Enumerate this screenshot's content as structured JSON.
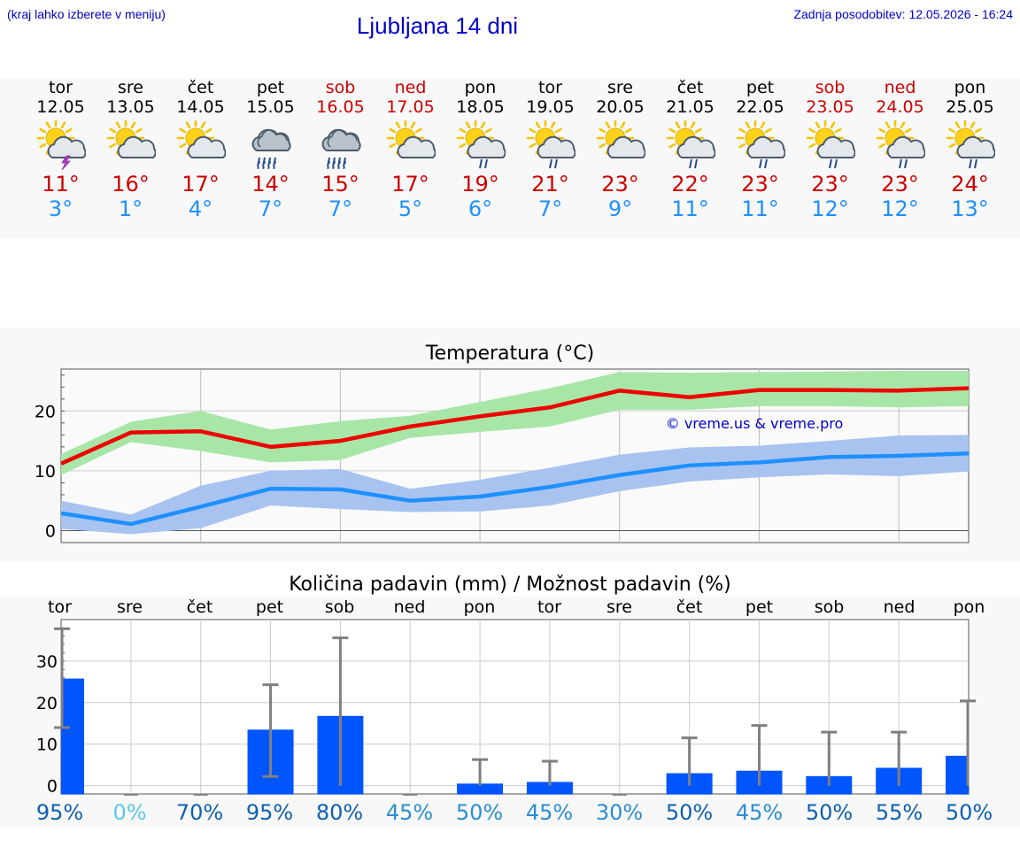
{
  "header": {
    "left_note": "(kraj lahko izberete v meniju)",
    "title": "Ljubljana 14 dni",
    "updated": "Zadnja posodobitev: 12.05.2026 - 16:24"
  },
  "days": [
    {
      "name": "tor",
      "date": "12.05",
      "weekend": false,
      "icon": "sun-cloud-thunder-icon",
      "tmax": "11°",
      "tmin": "3°"
    },
    {
      "name": "sre",
      "date": "13.05",
      "weekend": false,
      "icon": "sun-cloud-icon",
      "tmax": "16°",
      "tmin": "1°"
    },
    {
      "name": "čet",
      "date": "14.05",
      "weekend": false,
      "icon": "sun-cloud-icon",
      "tmax": "17°",
      "tmin": "4°"
    },
    {
      "name": "pet",
      "date": "15.05",
      "weekend": false,
      "icon": "cloud-rain-icon",
      "tmax": "14°",
      "tmin": "7°"
    },
    {
      "name": "sob",
      "date": "16.05",
      "weekend": true,
      "icon": "cloud-rain-icon",
      "tmax": "15°",
      "tmin": "7°"
    },
    {
      "name": "ned",
      "date": "17.05",
      "weekend": true,
      "icon": "sun-cloud-icon",
      "tmax": "17°",
      "tmin": "5°"
    },
    {
      "name": "pon",
      "date": "18.05",
      "weekend": false,
      "icon": "sun-cloud-rain-icon",
      "tmax": "19°",
      "tmin": "6°"
    },
    {
      "name": "tor",
      "date": "19.05",
      "weekend": false,
      "icon": "sun-cloud-rain-icon",
      "tmax": "21°",
      "tmin": "7°"
    },
    {
      "name": "sre",
      "date": "20.05",
      "weekend": false,
      "icon": "sun-cloud-icon",
      "tmax": "23°",
      "tmin": "9°"
    },
    {
      "name": "čet",
      "date": "21.05",
      "weekend": false,
      "icon": "sun-cloud-rain-icon",
      "tmax": "22°",
      "tmin": "11°"
    },
    {
      "name": "pet",
      "date": "22.05",
      "weekend": false,
      "icon": "sun-cloud-rain-icon",
      "tmax": "23°",
      "tmin": "11°"
    },
    {
      "name": "sob",
      "date": "23.05",
      "weekend": true,
      "icon": "sun-cloud-rain-icon",
      "tmax": "23°",
      "tmin": "12°"
    },
    {
      "name": "ned",
      "date": "24.05",
      "weekend": true,
      "icon": "sun-cloud-rain-icon",
      "tmax": "23°",
      "tmin": "12°"
    },
    {
      "name": "pon",
      "date": "25.05",
      "weekend": false,
      "icon": "sun-cloud-rain-icon",
      "tmax": "24°",
      "tmin": "13°"
    }
  ],
  "colors": {
    "title": "#0000cc",
    "weekend": "#cc0000",
    "tmax": "#ee0000",
    "tmin": "#1e90ff",
    "tmax_band": "#a8e6a8",
    "tmin_band": "#a9c3f0",
    "precip_bar": "#0055ff",
    "error_bar": "#808080"
  },
  "chart_data": [
    {
      "type": "line",
      "title": "Temperatura (°C)",
      "watermark": "© vreme.us & vreme.pro",
      "x": [
        0,
        1,
        2,
        3,
        4,
        5,
        6,
        7,
        8,
        9,
        10,
        11,
        12,
        13
      ],
      "ylim": [
        -2,
        27
      ],
      "yticks": [
        0,
        10,
        20
      ],
      "grid": true,
      "series": [
        {
          "values": [
            11.2,
            16.4,
            16.6,
            14.0,
            15.0,
            17.4,
            19.1,
            20.6,
            23.4,
            22.3,
            23.5,
            23.5,
            23.4,
            23.8
          ],
          "band_low": [
            9.3,
            14.8,
            13.3,
            11.4,
            11.8,
            15.5,
            16.5,
            17.4,
            20.2,
            20.2,
            20.8,
            20.8,
            20.6,
            20.8
          ],
          "band_high": [
            12.8,
            18.2,
            20.0,
            16.9,
            18.3,
            19.2,
            21.5,
            23.8,
            26.5,
            26.4,
            26.5,
            26.6,
            26.7,
            26.7
          ]
        },
        {
          "values": [
            2.9,
            1.1,
            4.0,
            7.0,
            6.9,
            5.0,
            5.7,
            7.3,
            9.3,
            10.9,
            11.4,
            12.3,
            12.5,
            12.9
          ],
          "band_low": [
            0.3,
            -0.6,
            0.4,
            4.2,
            3.6,
            3.1,
            3.2,
            4.2,
            6.6,
            8.2,
            8.9,
            9.4,
            9.1,
            9.9
          ],
          "band_high": [
            5.0,
            2.7,
            7.5,
            10.0,
            10.3,
            7.0,
            8.5,
            10.5,
            12.7,
            13.9,
            14.2,
            15.0,
            15.9,
            16.0
          ]
        }
      ]
    },
    {
      "type": "bar",
      "title": "Količina padavin (mm) / Možnost padavin (%)",
      "categories": [
        "tor",
        "sre",
        "čet",
        "pet",
        "sob",
        "ned",
        "pon",
        "tor",
        "sre",
        "čet",
        "pet",
        "sob",
        "ned",
        "pon"
      ],
      "values": [
        25.8,
        0,
        0,
        13.5,
        16.8,
        0,
        0.5,
        0.9,
        0,
        3.0,
        3.6,
        2.3,
        4.3,
        7.2
      ],
      "err_low": [
        14.0,
        0,
        0,
        2.2,
        0,
        0,
        0,
        0,
        0,
        0,
        0,
        0,
        0,
        0
      ],
      "err_high": [
        37.8,
        0,
        0,
        24.3,
        35.6,
        0,
        6.3,
        5.9,
        0,
        11.5,
        14.5,
        12.9,
        12.9,
        20.4
      ],
      "probability": [
        "95%",
        "0%",
        "70%",
        "95%",
        "80%",
        "45%",
        "50%",
        "45%",
        "30%",
        "50%",
        "45%",
        "50%",
        "55%",
        "50%"
      ],
      "probability_colors": [
        "#1060b0",
        "#5cc8e8",
        "#1060b0",
        "#1060b0",
        "#1060b0",
        "#2c8ed0",
        "#2c8ed0",
        "#2c8ed0",
        "#2c8ed0",
        "#1060b0",
        "#2c8ed0",
        "#1060b0",
        "#1060b0",
        "#1060b0"
      ],
      "ylim": [
        -2,
        40
      ],
      "yticks": [
        0,
        10,
        20,
        30
      ],
      "grid": true
    }
  ]
}
